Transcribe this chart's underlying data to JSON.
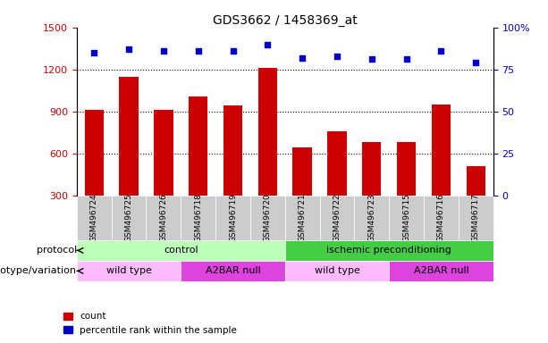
{
  "title": "GDS3662 / 1458369_at",
  "samples": [
    "GSM496724",
    "GSM496725",
    "GSM496726",
    "GSM496718",
    "GSM496719",
    "GSM496720",
    "GSM496721",
    "GSM496722",
    "GSM496723",
    "GSM496715",
    "GSM496716",
    "GSM496717"
  ],
  "counts": [
    910,
    1150,
    910,
    1010,
    940,
    1210,
    640,
    760,
    680,
    680,
    950,
    510
  ],
  "percentile_ranks": [
    85,
    87,
    86,
    86,
    86,
    90,
    82,
    83,
    81,
    81,
    86,
    79
  ],
  "ylim_left": [
    300,
    1500
  ],
  "ylim_right": [
    0,
    100
  ],
  "yticks_left": [
    300,
    600,
    900,
    1200,
    1500
  ],
  "yticks_right": [
    0,
    25,
    50,
    75,
    100
  ],
  "bar_color": "#cc0000",
  "dot_color": "#0000cc",
  "protocol_groups": [
    {
      "label": "control",
      "start": 0,
      "end": 6,
      "color": "#bbffbb"
    },
    {
      "label": "ischemic preconditioning",
      "start": 6,
      "end": 12,
      "color": "#44cc44"
    }
  ],
  "genotype_groups": [
    {
      "label": "wild type",
      "start": 0,
      "end": 3,
      "color": "#ffbbff"
    },
    {
      "label": "A2BAR null",
      "start": 3,
      "end": 6,
      "color": "#dd44dd"
    },
    {
      "label": "wild type",
      "start": 6,
      "end": 9,
      "color": "#ffbbff"
    },
    {
      "label": "A2BAR null",
      "start": 9,
      "end": 12,
      "color": "#dd44dd"
    }
  ],
  "protocol_label": "protocol",
  "genotype_label": "genotype/variation",
  "legend_items": [
    {
      "label": "count",
      "color": "#cc0000"
    },
    {
      "label": "percentile rank within the sample",
      "color": "#0000cc"
    }
  ],
  "tick_label_color_left": "#cc0000",
  "tick_label_color_right": "#0000cc",
  "xlabel_bg_color": "#cccccc",
  "background_color": "#ffffff"
}
